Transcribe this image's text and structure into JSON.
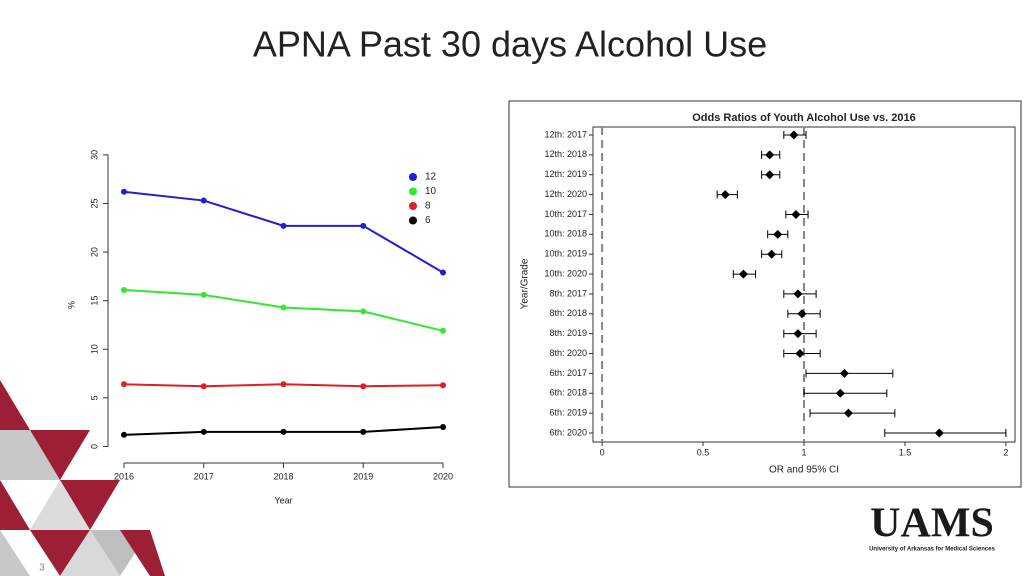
{
  "title": "APNA Past 30 days Alcohol Use",
  "logo": {
    "name": "UAMS",
    "subtitle": "University of Arkansas for Medical Sciences"
  },
  "slide_number": "3",
  "chart_data": [
    {
      "type": "line",
      "x_label": "Year",
      "y_label": "%",
      "categories": [
        "2016",
        "2017",
        "2018",
        "2019",
        "2020"
      ],
      "series": [
        {
          "name": "12",
          "color": "#1f1fd6",
          "values": [
            26.2,
            25.3,
            22.7,
            22.7,
            17.9
          ]
        },
        {
          "name": "10",
          "color": "#33e833",
          "values": [
            16.1,
            15.6,
            14.3,
            13.9,
            11.9
          ]
        },
        {
          "name": "8",
          "color": "#e02020",
          "values": [
            6.4,
            6.2,
            6.4,
            6.2,
            6.3
          ]
        },
        {
          "name": "6",
          "color": "#000000",
          "values": [
            1.2,
            1.5,
            1.5,
            1.5,
            2.0
          ]
        }
      ],
      "ylim": [
        -1.7,
        30.5
      ],
      "yticks": [
        0,
        5,
        10,
        15,
        20,
        25,
        30
      ],
      "legend": "top-right"
    },
    {
      "type": "forest",
      "title": "Odds Ratios of Youth Alcohol Use vs. 2016",
      "x_label": "OR and 95% CI",
      "y_label": "Year/Grade",
      "categories": [
        "12th: 2017",
        "12th: 2018",
        "12th: 2019",
        "12th: 2020",
        "10th: 2017",
        "10th: 2018",
        "10th: 2019",
        "10th: 2020",
        "8th: 2017",
        "8th: 2018",
        "8th: 2019",
        "8th: 2020",
        "6th: 2017",
        "6th: 2018",
        "6th: 2019",
        "6th: 2020"
      ],
      "values": [
        0.95,
        0.83,
        0.83,
        0.61,
        0.96,
        0.87,
        0.84,
        0.7,
        0.97,
        0.99,
        0.97,
        0.98,
        1.2,
        1.18,
        1.22,
        1.67
      ],
      "lower": [
        0.9,
        0.79,
        0.79,
        0.57,
        0.91,
        0.82,
        0.79,
        0.65,
        0.9,
        0.92,
        0.9,
        0.9,
        1.01,
        1.0,
        1.03,
        1.4
      ],
      "upper": [
        1.01,
        0.88,
        0.88,
        0.67,
        1.02,
        0.92,
        0.89,
        0.76,
        1.06,
        1.08,
        1.06,
        1.08,
        1.44,
        1.41,
        1.45,
        2.0
      ],
      "color": "#000000",
      "reference_lines": [
        0,
        1
      ],
      "xlim": [
        -0.045,
        2.045
      ],
      "xticks": [
        0,
        0.5,
        1,
        1.5,
        2
      ]
    }
  ]
}
